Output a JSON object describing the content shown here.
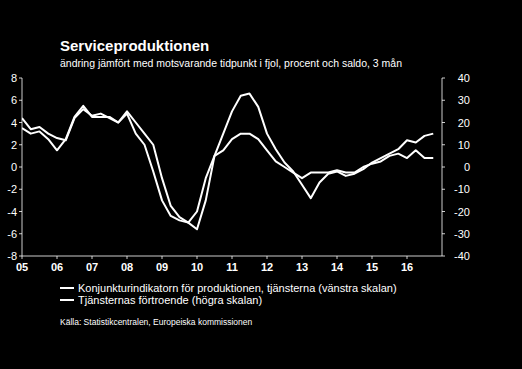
{
  "chart_data": {
    "type": "line",
    "title": "Serviceproduktionen",
    "subtitle": "ändring jämfört med motsvarande tidpunkt i fjol, procent och saldo, 3 mån",
    "source": "Källa: Statistikcentralen, Europeiska kommissionen",
    "x": [
      2005,
      2005.25,
      2005.5,
      2005.75,
      2006,
      2006.25,
      2006.5,
      2006.75,
      2007,
      2007.25,
      2007.5,
      2007.75,
      2008,
      2008.25,
      2008.5,
      2008.75,
      2009,
      2009.25,
      2009.5,
      2009.75,
      2010,
      2010.25,
      2010.5,
      2010.75,
      2011,
      2011.25,
      2011.5,
      2011.75,
      2012,
      2012.25,
      2012.5,
      2012.75,
      2013,
      2013.25,
      2013.5,
      2013.75,
      2014,
      2014.25,
      2014.5,
      2014.75,
      2015,
      2015.25,
      2015.5,
      2015.75,
      2016,
      2016.25,
      2016.5,
      2016.75
    ],
    "series": [
      {
        "name": "Konjunkturindikatorn för produktionen, tjänsterna (vänstra skalan)",
        "color": "#ffffff",
        "axis": "y",
        "values": [
          3.5,
          3,
          3.2,
          2.5,
          1.5,
          2.5,
          4.5,
          5.5,
          4.5,
          4.5,
          4.5,
          4,
          5,
          4,
          3,
          2,
          -1,
          -3.5,
          -4.5,
          -5,
          -4,
          -1,
          1,
          1.5,
          2.5,
          3,
          3,
          2.5,
          1.5,
          0.5,
          0,
          -0.5,
          -1,
          -0.5,
          -0.5,
          -0.5,
          -0.3,
          -0.5,
          -0.5,
          0,
          0.3,
          0.5,
          1,
          1.2,
          0.8,
          1.5,
          0.8,
          0.8
        ]
      },
      {
        "name": "Tjänsternas förtroende (högra skalan)",
        "color": "#ffffff",
        "axis": "y2",
        "values": [
          22,
          17,
          18,
          15,
          13,
          12,
          22,
          26,
          23,
          24,
          22,
          20,
          24,
          15,
          10,
          -2,
          -15,
          -22,
          -24,
          -25,
          -28,
          -15,
          5,
          15,
          25,
          32,
          33,
          27,
          15,
          8,
          2,
          -2,
          -8,
          -14,
          -7,
          -3,
          -2,
          -4,
          -3,
          -1,
          2,
          4,
          6,
          8,
          12,
          11,
          14,
          15
        ]
      }
    ],
    "xlim": [
      2005,
      2017
    ],
    "xticks": [
      {
        "value": 2005,
        "label": "05"
      },
      {
        "value": 2006,
        "label": "06"
      },
      {
        "value": 2007,
        "label": "07"
      },
      {
        "value": 2008,
        "label": "08"
      },
      {
        "value": 2009,
        "label": "09"
      },
      {
        "value": 2010,
        "label": "10"
      },
      {
        "value": 2011,
        "label": "11"
      },
      {
        "value": 2012,
        "label": "12"
      },
      {
        "value": 2013,
        "label": "13"
      },
      {
        "value": 2014,
        "label": "14"
      },
      {
        "value": 2015,
        "label": "15"
      },
      {
        "value": 2016,
        "label": "16"
      }
    ],
    "ylim": [
      -8,
      8
    ],
    "yticks": [
      -8,
      -6,
      -4,
      -2,
      0,
      2,
      4,
      6,
      8
    ],
    "y2lim": [
      -40,
      40
    ],
    "y2ticks": [
      -40,
      -30,
      -20,
      -10,
      0,
      10,
      20,
      30,
      40
    ],
    "grid": false,
    "legend": "bottom"
  }
}
